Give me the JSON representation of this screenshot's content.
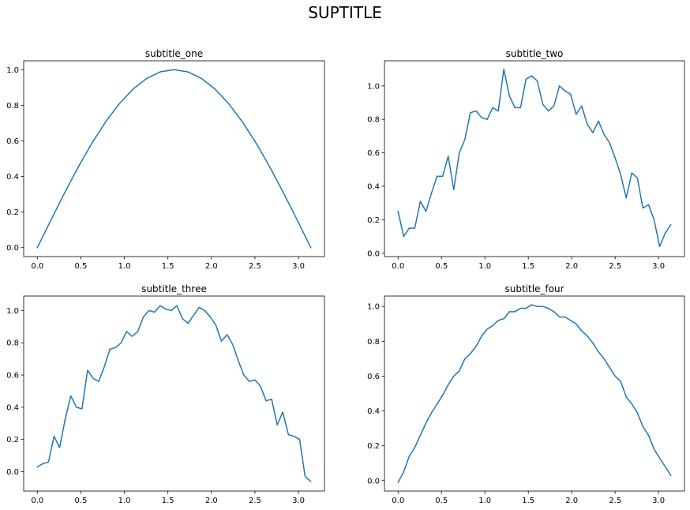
{
  "suptitle": "SUPTITLE",
  "line_color": "#1f77b4",
  "chart_data": [
    {
      "type": "line",
      "title": "subtitle_one",
      "xlabel": "",
      "ylabel": "",
      "xlim": [
        -0.157,
        3.299
      ],
      "ylim": [
        -0.05,
        1.05
      ],
      "xticks": [
        0.0,
        0.5,
        1.0,
        1.5,
        2.0,
        2.5,
        3.0
      ],
      "xtick_labels": [
        "0.0",
        "0.5",
        "1.0",
        "1.5",
        "2.0",
        "2.5",
        "3.0"
      ],
      "yticks": [
        0.0,
        0.2,
        0.4,
        0.6,
        0.8,
        1.0
      ],
      "ytick_labels": [
        "0.0",
        "0.2",
        "0.4",
        "0.6",
        "0.8",
        "1.0"
      ],
      "series": [
        {
          "x": [
            0.0,
            0.157,
            0.314,
            0.471,
            0.628,
            0.785,
            0.942,
            1.1,
            1.257,
            1.414,
            1.571,
            1.728,
            1.885,
            2.042,
            2.199,
            2.356,
            2.513,
            2.67,
            2.827,
            2.985,
            3.142
          ],
          "y": [
            0.0,
            0.156,
            0.309,
            0.454,
            0.588,
            0.707,
            0.809,
            0.891,
            0.951,
            0.988,
            1.0,
            0.988,
            0.951,
            0.891,
            0.809,
            0.707,
            0.588,
            0.454,
            0.309,
            0.156,
            0.0
          ]
        }
      ]
    },
    {
      "type": "line",
      "title": "subtitle_two",
      "xlabel": "",
      "ylabel": "",
      "xlim": [
        -0.157,
        3.299
      ],
      "ylim": [
        -0.02,
        1.15
      ],
      "xticks": [
        0.0,
        0.5,
        1.0,
        1.5,
        2.0,
        2.5,
        3.0
      ],
      "xtick_labels": [
        "0.0",
        "0.5",
        "1.0",
        "1.5",
        "2.0",
        "2.5",
        "3.0"
      ],
      "yticks": [
        0.0,
        0.2,
        0.4,
        0.6,
        0.8,
        1.0
      ],
      "ytick_labels": [
        "0.0",
        "0.2",
        "0.4",
        "0.6",
        "0.8",
        "1.0"
      ],
      "series": [
        {
          "x": [
            0.0,
            0.064,
            0.128,
            0.192,
            0.256,
            0.321,
            0.385,
            0.449,
            0.513,
            0.577,
            0.641,
            0.705,
            0.769,
            0.833,
            0.898,
            0.962,
            1.026,
            1.09,
            1.154,
            1.218,
            1.282,
            1.346,
            1.41,
            1.474,
            1.538,
            1.603,
            1.667,
            1.731,
            1.795,
            1.859,
            1.923,
            1.987,
            2.051,
            2.115,
            2.18,
            2.244,
            2.308,
            2.372,
            2.436,
            2.5,
            2.564,
            2.628,
            2.692,
            2.756,
            2.82,
            2.885,
            2.949,
            3.013,
            3.077,
            3.141
          ],
          "y": [
            0.25,
            0.1,
            0.15,
            0.15,
            0.31,
            0.25,
            0.36,
            0.46,
            0.46,
            0.58,
            0.38,
            0.6,
            0.68,
            0.84,
            0.85,
            0.81,
            0.8,
            0.87,
            0.85,
            1.1,
            0.94,
            0.87,
            0.87,
            1.04,
            1.06,
            1.03,
            0.89,
            0.85,
            0.88,
            1.0,
            0.97,
            0.95,
            0.83,
            0.88,
            0.77,
            0.72,
            0.79,
            0.71,
            0.66,
            0.57,
            0.47,
            0.33,
            0.48,
            0.45,
            0.27,
            0.29,
            0.2,
            0.04,
            0.12,
            0.17
          ]
        }
      ]
    },
    {
      "type": "line",
      "title": "subtitle_three",
      "xlabel": "",
      "ylabel": "",
      "xlim": [
        -0.157,
        3.299
      ],
      "ylim": [
        -0.12,
        1.09
      ],
      "xticks": [
        0.0,
        0.5,
        1.0,
        1.5,
        2.0,
        2.5,
        3.0
      ],
      "xtick_labels": [
        "0.0",
        "0.5",
        "1.0",
        "1.5",
        "2.0",
        "2.5",
        "3.0"
      ],
      "yticks": [
        0.0,
        0.2,
        0.4,
        0.6,
        0.8,
        1.0
      ],
      "ytick_labels": [
        "0.0",
        "0.2",
        "0.4",
        "0.6",
        "0.8",
        "1.0"
      ],
      "series": [
        {
          "x": [
            0.0,
            0.064,
            0.128,
            0.192,
            0.256,
            0.321,
            0.385,
            0.449,
            0.513,
            0.577,
            0.641,
            0.705,
            0.769,
            0.833,
            0.898,
            0.962,
            1.026,
            1.09,
            1.154,
            1.218,
            1.282,
            1.346,
            1.41,
            1.474,
            1.538,
            1.603,
            1.667,
            1.731,
            1.795,
            1.859,
            1.923,
            1.987,
            2.051,
            2.115,
            2.18,
            2.244,
            2.308,
            2.372,
            2.436,
            2.5,
            2.564,
            2.628,
            2.692,
            2.756,
            2.82,
            2.885,
            2.949,
            3.013,
            3.077,
            3.141
          ],
          "y": [
            0.03,
            0.05,
            0.06,
            0.22,
            0.15,
            0.33,
            0.47,
            0.4,
            0.39,
            0.63,
            0.58,
            0.56,
            0.65,
            0.76,
            0.77,
            0.8,
            0.87,
            0.84,
            0.87,
            0.96,
            1.0,
            0.99,
            1.03,
            1.01,
            1.0,
            1.03,
            0.95,
            0.92,
            0.97,
            1.02,
            1.0,
            0.96,
            0.91,
            0.81,
            0.85,
            0.79,
            0.69,
            0.6,
            0.56,
            0.57,
            0.53,
            0.44,
            0.45,
            0.29,
            0.37,
            0.23,
            0.22,
            0.2,
            -0.03,
            -0.06
          ]
        }
      ]
    },
    {
      "type": "line",
      "title": "subtitle_four",
      "xlabel": "",
      "ylabel": "",
      "xlim": [
        -0.157,
        3.299
      ],
      "ylim": [
        -0.06,
        1.06
      ],
      "xticks": [
        0.0,
        0.5,
        1.0,
        1.5,
        2.0,
        2.5,
        3.0
      ],
      "xtick_labels": [
        "0.0",
        "0.5",
        "1.0",
        "1.5",
        "2.0",
        "2.5",
        "3.0"
      ],
      "yticks": [
        0.0,
        0.2,
        0.4,
        0.6,
        0.8,
        1.0
      ],
      "ytick_labels": [
        "0.0",
        "0.2",
        "0.4",
        "0.6",
        "0.8",
        "1.0"
      ],
      "series": [
        {
          "x": [
            0.0,
            0.064,
            0.128,
            0.192,
            0.256,
            0.321,
            0.385,
            0.449,
            0.513,
            0.577,
            0.641,
            0.705,
            0.769,
            0.833,
            0.898,
            0.962,
            1.026,
            1.09,
            1.154,
            1.218,
            1.282,
            1.346,
            1.41,
            1.474,
            1.538,
            1.603,
            1.667,
            1.731,
            1.795,
            1.859,
            1.923,
            1.987,
            2.051,
            2.115,
            2.18,
            2.244,
            2.308,
            2.372,
            2.436,
            2.5,
            2.564,
            2.628,
            2.692,
            2.756,
            2.82,
            2.885,
            2.949,
            3.013,
            3.077,
            3.141
          ],
          "y": [
            -0.01,
            0.05,
            0.14,
            0.19,
            0.26,
            0.33,
            0.39,
            0.44,
            0.49,
            0.55,
            0.6,
            0.63,
            0.7,
            0.73,
            0.77,
            0.83,
            0.87,
            0.89,
            0.92,
            0.93,
            0.97,
            0.97,
            0.99,
            0.99,
            1.01,
            1.0,
            1.0,
            0.99,
            0.97,
            0.94,
            0.94,
            0.92,
            0.9,
            0.86,
            0.83,
            0.79,
            0.74,
            0.7,
            0.65,
            0.6,
            0.57,
            0.48,
            0.44,
            0.39,
            0.31,
            0.26,
            0.18,
            0.13,
            0.08,
            0.03
          ]
        }
      ]
    }
  ]
}
